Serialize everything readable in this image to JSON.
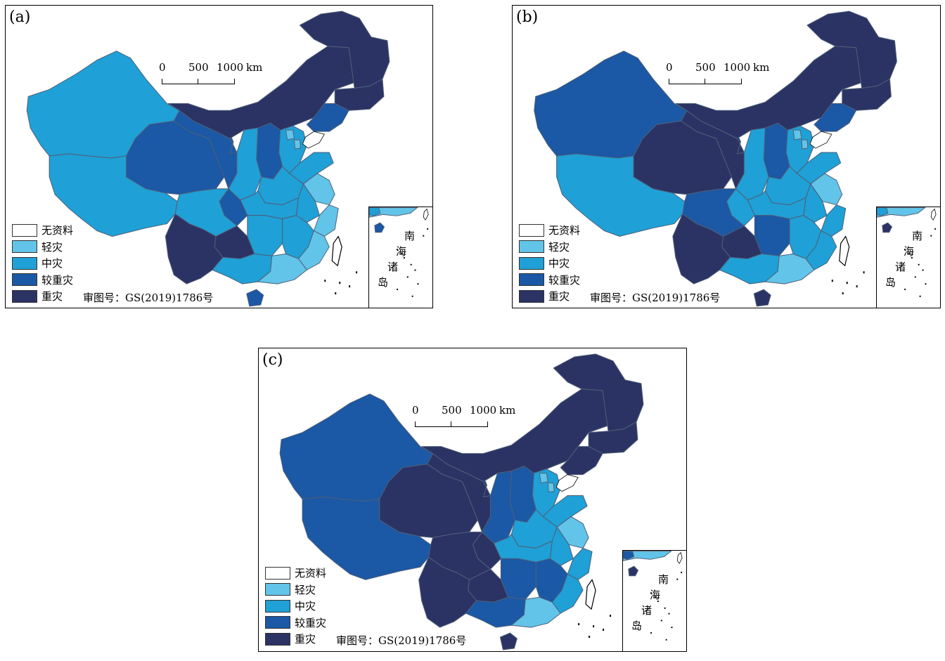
{
  "colors": {
    "no_data": "#ffffff",
    "light": "#62c4e8",
    "moderate": "#1fa0d6",
    "heavy": "#1b58a5",
    "severe": "#2b3364",
    "border": "#4f5f78"
  },
  "legend": {
    "items": [
      {
        "label": "无资料",
        "color": "#ffffff"
      },
      {
        "label": "轻灾",
        "color": "#62c4e8"
      },
      {
        "label": "中灾",
        "color": "#1fa0d6"
      },
      {
        "label": "较重灾",
        "color": "#1b58a5"
      },
      {
        "label": "重灾",
        "color": "#2b3364"
      }
    ]
  },
  "scalebar": {
    "tick0": "0",
    "tick1": "500",
    "tick2": "1000",
    "unit": "km"
  },
  "approval_text": "审图号：GS(2019)1786号",
  "inset": {
    "label_nan": "南",
    "label_hai": "海",
    "label_zhu": "诸",
    "label_dao": "岛"
  },
  "panels": [
    {
      "label": "(a)",
      "regions": {
        "heilongjiang": "severe",
        "jilin": "severe",
        "liaoning": "heavy",
        "neimenggu": "severe",
        "xinjiang": "moderate",
        "xizang": "moderate",
        "qinghai": "heavy",
        "gansu": "heavy",
        "ningxia": "heavy",
        "shaanxi": "moderate",
        "shanxi": "heavy",
        "hebei": "moderate",
        "beijing": "light",
        "tianjin": "light",
        "shandong": "moderate",
        "henan": "moderate",
        "jiangsu": "light",
        "anhui": "moderate",
        "zhejiang": "light",
        "sichuan": "moderate",
        "chongqing": "heavy",
        "hubei": "moderate",
        "hunan": "moderate",
        "jiangxi": "moderate",
        "fujian": "light",
        "guizhou": "severe",
        "yunnan": "severe",
        "guangxi": "moderate",
        "guangdong": "light",
        "hainan": "heavy",
        "taiwan": "no_data"
      }
    },
    {
      "label": "(b)",
      "regions": {
        "heilongjiang": "severe",
        "jilin": "severe",
        "liaoning": "heavy",
        "neimenggu": "severe",
        "xinjiang": "heavy",
        "xizang": "moderate",
        "qinghai": "severe",
        "gansu": "severe",
        "ningxia": "severe",
        "shaanxi": "moderate",
        "shanxi": "heavy",
        "hebei": "moderate",
        "beijing": "light",
        "tianjin": "light",
        "shandong": "moderate",
        "henan": "moderate",
        "jiangsu": "light",
        "anhui": "moderate",
        "zhejiang": "moderate",
        "sichuan": "heavy",
        "chongqing": "moderate",
        "hubei": "moderate",
        "hunan": "heavy",
        "jiangxi": "moderate",
        "fujian": "moderate",
        "guizhou": "severe",
        "yunnan": "severe",
        "guangxi": "moderate",
        "guangdong": "light",
        "hainan": "severe",
        "taiwan": "no_data"
      }
    },
    {
      "label": "(c)",
      "regions": {
        "heilongjiang": "severe",
        "jilin": "severe",
        "liaoning": "severe",
        "neimenggu": "severe",
        "xinjiang": "heavy",
        "xizang": "heavy",
        "qinghai": "severe",
        "gansu": "severe",
        "ningxia": "severe",
        "shaanxi": "heavy",
        "shanxi": "heavy",
        "hebei": "moderate",
        "beijing": "light",
        "tianjin": "light",
        "shandong": "moderate",
        "henan": "moderate",
        "jiangsu": "light",
        "anhui": "moderate",
        "zhejiang": "moderate",
        "sichuan": "severe",
        "chongqing": "severe",
        "hubei": "moderate",
        "hunan": "heavy",
        "jiangxi": "heavy",
        "fujian": "moderate",
        "guizhou": "severe",
        "yunnan": "severe",
        "guangxi": "heavy",
        "guangdong": "light",
        "hainan": "severe",
        "taiwan": "no_data"
      }
    }
  ]
}
